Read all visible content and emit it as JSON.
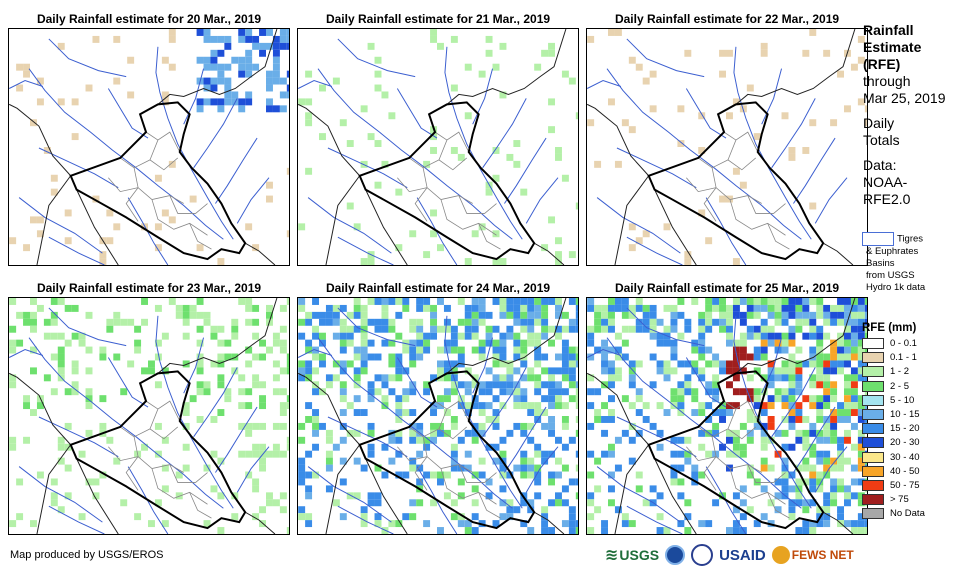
{
  "panels": [
    {
      "title": "Daily Rainfall estimate for 20 Mar., 2019"
    },
    {
      "title": "Daily Rainfall estimate for 21 Mar., 2019"
    },
    {
      "title": "Daily Rainfall estimate for 22 Mar., 2019"
    },
    {
      "title": "Daily Rainfall estimate for 23 Mar., 2019"
    },
    {
      "title": "Daily Rainfall estimate for 24 Mar., 2019"
    },
    {
      "title": "Daily Rainfall estimate for 25 Mar., 2019"
    }
  ],
  "sidebar": {
    "title_lines": [
      "Rainfall",
      "Estimate",
      "(RFE)"
    ],
    "through_label": "through",
    "date": "Mar 25, 2019",
    "totals_lines": [
      "Daily",
      "Totals"
    ],
    "data_lines": [
      "Data:",
      "NOAA-",
      "RFE2.0"
    ]
  },
  "basin_legend": {
    "label_first": "Tigres",
    "label_rest": [
      "& Euphrates",
      "Basins",
      "from USGS",
      "Hydro 1k data"
    ]
  },
  "legend": {
    "title": "RFE (mm)",
    "items": [
      {
        "label": "0 - 0.1",
        "color": "#ffffff"
      },
      {
        "label": "0.1 - 1",
        "color": "#e8d3b0"
      },
      {
        "label": "1 - 2",
        "color": "#b4f0a8"
      },
      {
        "label": "2 - 5",
        "color": "#6ee06e"
      },
      {
        "label": "5 - 10",
        "color": "#a4e4f0"
      },
      {
        "label": "10 - 15",
        "color": "#6aaee8"
      },
      {
        "label": "15 - 20",
        "color": "#3a8ce8"
      },
      {
        "label": "20 - 30",
        "color": "#1e4fd8"
      },
      {
        "label": "30 - 40",
        "color": "#fbe78a"
      },
      {
        "label": "40 - 50",
        "color": "#f8a528"
      },
      {
        "label": "50 - 75",
        "color": "#f03c14"
      },
      {
        "label": "> 75",
        "color": "#a01e1e"
      },
      {
        "label": "No Data",
        "color": "#a8a8a8"
      }
    ]
  },
  "credit": "Map produced by USGS/EROS",
  "logos": {
    "usgs": "USGS",
    "usaid": "USAID",
    "fewsnet": "FEWS NET"
  }
}
